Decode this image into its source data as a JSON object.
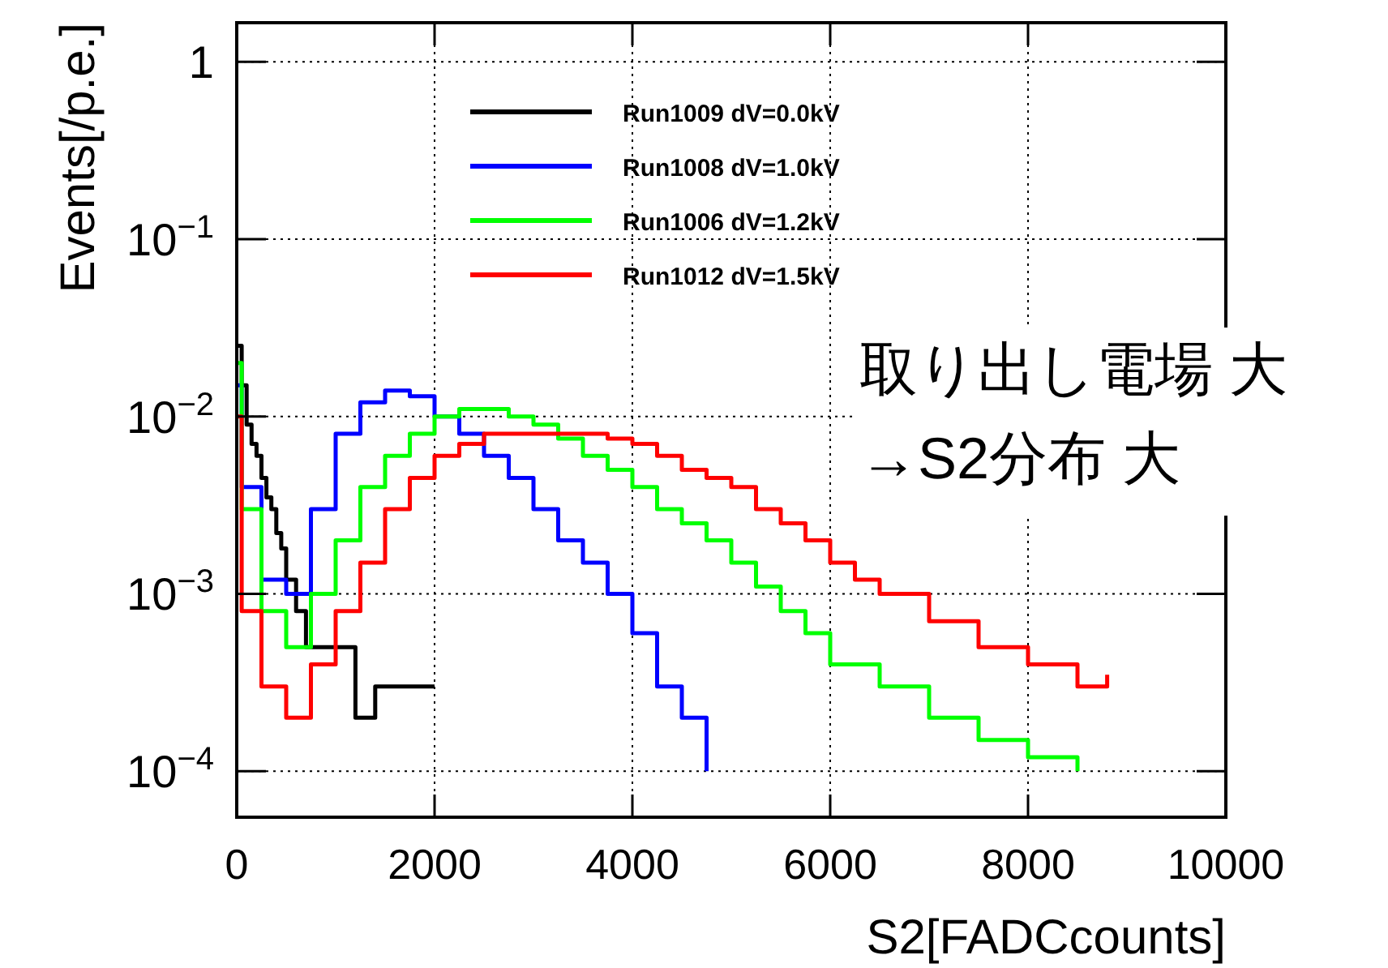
{
  "chart_data": {
    "type": "step",
    "xlabel": "S2[FADCcounts]",
    "ylabel": "Events[/p.e.]",
    "annotations": [
      "取り出し電場 大\n→S2分布 大"
    ],
    "xlim": [
      0,
      10000
    ],
    "xticks": [
      0,
      2000,
      4000,
      6000,
      8000,
      10000
    ],
    "ylim": [
      5.5e-05,
      1.66
    ],
    "log": true,
    "yticks": [
      {
        "value": 1,
        "label": "1"
      },
      {
        "value": 0.1,
        "label": "10$^{−1}$"
      },
      {
        "value": 0.01,
        "label": "10$^{−2}$"
      },
      {
        "value": 0.001,
        "label": "10$^{−3}$"
      },
      {
        "value": 0.0001,
        "label": "10$^{−4}$"
      }
    ],
    "grid": true,
    "legend": "top",
    "marker": "none",
    "line_style": "solid",
    "series": [
      {
        "name": "Run1009 dV=0.0kV",
        "color": "#000000",
        "x": [
          0,
          50,
          100,
          150,
          200,
          250,
          300,
          350,
          400,
          450,
          500,
          600,
          700,
          1200,
          1400,
          1600,
          1800,
          2000
        ],
        "values": [
          0.025,
          0.015,
          0.009,
          0.007,
          0.006,
          0.0045,
          0.0035,
          0.003,
          0.0022,
          0.0018,
          0.0012,
          0.0008,
          0.0005,
          0.0002,
          0.0003,
          0.0003,
          0.0003,
          0.0003
        ]
      },
      {
        "name": "Run1008 dV=1.0kV",
        "color": "#0000ff",
        "x": [
          0,
          50,
          250,
          500,
          750,
          1000,
          1250,
          1500,
          1750,
          2000,
          2250,
          2500,
          2750,
          3000,
          3250,
          3500,
          3750,
          4000,
          4250,
          4500,
          4750
        ],
        "values": [
          0.015,
          0.004,
          0.0012,
          0.001,
          0.003,
          0.008,
          0.012,
          0.014,
          0.013,
          0.01,
          0.008,
          0.006,
          0.0045,
          0.003,
          0.002,
          0.0015,
          0.001,
          0.0006,
          0.0003,
          0.0002,
          0.0001
        ]
      },
      {
        "name": "Run1006 dV=1.2kV",
        "color": "#00ff00",
        "x": [
          0,
          50,
          250,
          500,
          750,
          1000,
          1250,
          1500,
          1750,
          2000,
          2250,
          2500,
          2750,
          3000,
          3250,
          3500,
          3750,
          4000,
          4250,
          4500,
          4750,
          5000,
          5250,
          5500,
          5750,
          6000,
          6500,
          7000,
          7500,
          8000,
          8500
        ],
        "values": [
          0.02,
          0.003,
          0.0008,
          0.0005,
          0.001,
          0.002,
          0.004,
          0.006,
          0.008,
          0.01,
          0.011,
          0.011,
          0.01,
          0.009,
          0.0075,
          0.006,
          0.005,
          0.004,
          0.003,
          0.0025,
          0.002,
          0.0015,
          0.0011,
          0.0008,
          0.0006,
          0.0004,
          0.0003,
          0.0002,
          0.00015,
          0.00012,
          0.0001
        ]
      },
      {
        "name": "Run1012 dV=1.5kV",
        "color": "#ff0000",
        "x": [
          0,
          50,
          250,
          500,
          750,
          1000,
          1250,
          1500,
          1750,
          2000,
          2250,
          2500,
          2750,
          3000,
          3250,
          3500,
          3750,
          4000,
          4250,
          4500,
          4750,
          5000,
          5250,
          5500,
          5750,
          6000,
          6250,
          6500,
          7000,
          7500,
          8000,
          8500,
          8800
        ],
        "values": [
          0.01,
          0.0008,
          0.0003,
          0.0002,
          0.0004,
          0.0008,
          0.0015,
          0.003,
          0.0045,
          0.006,
          0.007,
          0.008,
          0.008,
          0.008,
          0.008,
          0.008,
          0.0075,
          0.007,
          0.006,
          0.005,
          0.0045,
          0.004,
          0.003,
          0.0025,
          0.002,
          0.0015,
          0.0012,
          0.001,
          0.0007,
          0.0005,
          0.0004,
          0.0003,
          0.00035
        ]
      }
    ]
  }
}
